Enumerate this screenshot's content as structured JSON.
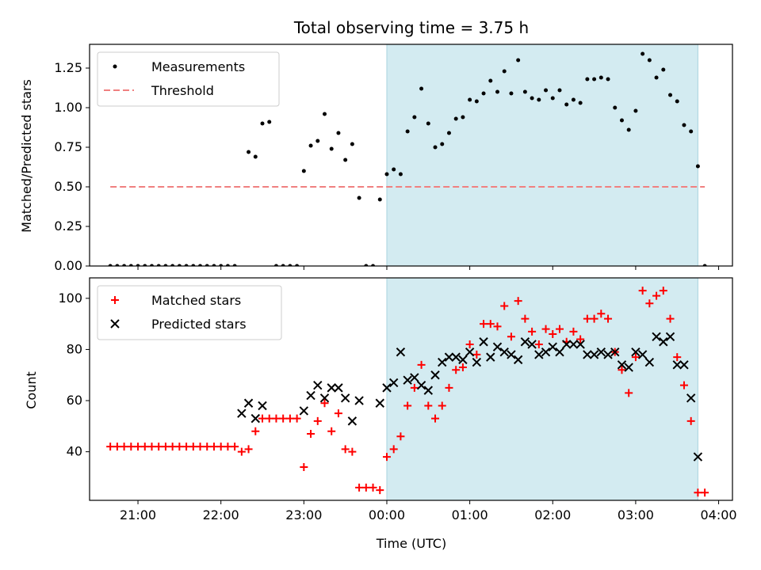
{
  "chart_data": [
    {
      "type": "scatter",
      "title": "Total observing time = 3.75 h",
      "ylabel": "Matched/Predicted stars",
      "xlim": [
        "20:25",
        "04:10"
      ],
      "ylim": [
        0,
        1.4
      ],
      "yticks": [
        0.0,
        0.25,
        0.5,
        0.75,
        1.0,
        1.25
      ],
      "ytick_labels": [
        "0.00",
        "0.25",
        "0.50",
        "0.75",
        "1.00",
        "1.25"
      ],
      "observing_window": [
        "00:00",
        "03:45"
      ],
      "window_color": "#d3ebf1",
      "legend": {
        "placement": "upper-left",
        "entries": [
          "Measurements",
          "Threshold"
        ]
      },
      "series": [
        {
          "name": "Measurements",
          "color": "#000000",
          "points": [
            [
              "20:40",
              0
            ],
            [
              "20:45",
              0
            ],
            [
              "20:50",
              0
            ],
            [
              "20:55",
              0
            ],
            [
              "21:00",
              0
            ],
            [
              "21:05",
              0
            ],
            [
              "21:10",
              0
            ],
            [
              "21:15",
              0
            ],
            [
              "21:20",
              0
            ],
            [
              "21:25",
              0
            ],
            [
              "21:30",
              0
            ],
            [
              "21:35",
              0
            ],
            [
              "21:40",
              0
            ],
            [
              "21:45",
              0
            ],
            [
              "21:50",
              0
            ],
            [
              "21:55",
              0
            ],
            [
              "22:00",
              0
            ],
            [
              "22:05",
              0
            ],
            [
              "22:10",
              0
            ],
            [
              "22:20",
              0.72
            ],
            [
              "22:25",
              0.69
            ],
            [
              "22:30",
              0.9
            ],
            [
              "22:35",
              0.91
            ],
            [
              "22:40",
              0
            ],
            [
              "22:45",
              0
            ],
            [
              "22:50",
              0
            ],
            [
              "22:55",
              0
            ],
            [
              "23:00",
              0.6
            ],
            [
              "23:05",
              0.76
            ],
            [
              "23:10",
              0.79
            ],
            [
              "23:15",
              0.96
            ],
            [
              "23:20",
              0.74
            ],
            [
              "23:25",
              0.84
            ],
            [
              "23:30",
              0.67
            ],
            [
              "23:35",
              0.77
            ],
            [
              "23:40",
              0.43
            ],
            [
              "23:45",
              0
            ],
            [
              "23:50",
              0
            ],
            [
              "23:55",
              0.42
            ],
            [
              "00:00",
              0.58
            ],
            [
              "00:05",
              0.61
            ],
            [
              "00:10",
              0.58
            ],
            [
              "00:15",
              0.85
            ],
            [
              "00:20",
              0.94
            ],
            [
              "00:25",
              1.12
            ],
            [
              "00:30",
              0.9
            ],
            [
              "00:35",
              0.75
            ],
            [
              "00:40",
              0.77
            ],
            [
              "00:45",
              0.84
            ],
            [
              "00:50",
              0.93
            ],
            [
              "00:55",
              0.94
            ],
            [
              "01:00",
              1.05
            ],
            [
              "01:05",
              1.04
            ],
            [
              "01:10",
              1.09
            ],
            [
              "01:15",
              1.17
            ],
            [
              "01:20",
              1.1
            ],
            [
              "01:25",
              1.23
            ],
            [
              "01:30",
              1.09
            ],
            [
              "01:35",
              1.3
            ],
            [
              "01:40",
              1.1
            ],
            [
              "01:45",
              1.06
            ],
            [
              "01:50",
              1.05
            ],
            [
              "01:55",
              1.11
            ],
            [
              "02:00",
              1.06
            ],
            [
              "02:05",
              1.11
            ],
            [
              "02:10",
              1.02
            ],
            [
              "02:15",
              1.05
            ],
            [
              "02:20",
              1.03
            ],
            [
              "02:25",
              1.18
            ],
            [
              "02:30",
              1.18
            ],
            [
              "02:35",
              1.19
            ],
            [
              "02:40",
              1.18
            ],
            [
              "02:45",
              1.0
            ],
            [
              "02:50",
              0.92
            ],
            [
              "02:55",
              0.86
            ],
            [
              "03:00",
              0.98
            ],
            [
              "03:05",
              1.34
            ],
            [
              "03:10",
              1.3
            ],
            [
              "03:15",
              1.19
            ],
            [
              "03:20",
              1.24
            ],
            [
              "03:25",
              1.08
            ],
            [
              "03:30",
              1.04
            ],
            [
              "03:35",
              0.89
            ],
            [
              "03:40",
              0.85
            ],
            [
              "03:45",
              0.63
            ],
            [
              "03:50",
              0
            ]
          ]
        },
        {
          "name": "Threshold",
          "color": "#f08080",
          "style": "dashed",
          "x": [
            "20:40",
            "03:50"
          ],
          "y": [
            0.5,
            0.5
          ]
        }
      ]
    },
    {
      "type": "scatter",
      "xlabel": "Time (UTC)",
      "ylabel": "Count",
      "xlim": [
        "20:25",
        "04:10"
      ],
      "ylim": [
        21,
        108
      ],
      "yticks": [
        40,
        60,
        80,
        100
      ],
      "ytick_labels": [
        "40",
        "60",
        "80",
        "100"
      ],
      "xticks": [
        "21:00",
        "22:00",
        "23:00",
        "00:00",
        "01:00",
        "02:00",
        "03:00",
        "04:00"
      ],
      "xtick_labels": [
        "21:00",
        "22:00",
        "23:00",
        "00:00",
        "01:00",
        "02:00",
        "03:00",
        "04:00"
      ],
      "observing_window": [
        "00:00",
        "03:45"
      ],
      "window_color": "#d3ebf1",
      "legend": {
        "placement": "upper-left",
        "entries": [
          "Matched stars",
          "Predicted stars"
        ]
      },
      "series": [
        {
          "name": "Matched stars",
          "color": "#ff0000",
          "marker": "plus",
          "points": [
            [
              "20:40",
              42
            ],
            [
              "20:45",
              42
            ],
            [
              "20:50",
              42
            ],
            [
              "20:55",
              42
            ],
            [
              "21:00",
              42
            ],
            [
              "21:05",
              42
            ],
            [
              "21:10",
              42
            ],
            [
              "21:15",
              42
            ],
            [
              "21:20",
              42
            ],
            [
              "21:25",
              42
            ],
            [
              "21:30",
              42
            ],
            [
              "21:35",
              42
            ],
            [
              "21:40",
              42
            ],
            [
              "21:45",
              42
            ],
            [
              "21:50",
              42
            ],
            [
              "21:55",
              42
            ],
            [
              "22:00",
              42
            ],
            [
              "22:05",
              42
            ],
            [
              "22:10",
              42
            ],
            [
              "22:15",
              40
            ],
            [
              "22:20",
              41
            ],
            [
              "22:25",
              48
            ],
            [
              "22:30",
              53
            ],
            [
              "22:35",
              53
            ],
            [
              "22:40",
              53
            ],
            [
              "22:45",
              53
            ],
            [
              "22:50",
              53
            ],
            [
              "22:55",
              53
            ],
            [
              "23:00",
              34
            ],
            [
              "23:05",
              47
            ],
            [
              "23:10",
              52
            ],
            [
              "23:15",
              59
            ],
            [
              "23:20",
              48
            ],
            [
              "23:25",
              55
            ],
            [
              "23:30",
              41
            ],
            [
              "23:35",
              40
            ],
            [
              "23:40",
              26
            ],
            [
              "23:45",
              26
            ],
            [
              "23:50",
              26
            ],
            [
              "23:55",
              25
            ],
            [
              "00:00",
              38
            ],
            [
              "00:05",
              41
            ],
            [
              "00:10",
              46
            ],
            [
              "00:15",
              58
            ],
            [
              "00:20",
              65
            ],
            [
              "00:25",
              74
            ],
            [
              "00:30",
              58
            ],
            [
              "00:35",
              53
            ],
            [
              "00:40",
              58
            ],
            [
              "00:45",
              65
            ],
            [
              "00:50",
              72
            ],
            [
              "00:55",
              73
            ],
            [
              "01:00",
              82
            ],
            [
              "01:05",
              78
            ],
            [
              "01:10",
              90
            ],
            [
              "01:15",
              90
            ],
            [
              "01:20",
              89
            ],
            [
              "01:25",
              97
            ],
            [
              "01:30",
              85
            ],
            [
              "01:35",
              99
            ],
            [
              "01:40",
              92
            ],
            [
              "01:45",
              87
            ],
            [
              "01:50",
              82
            ],
            [
              "01:55",
              88
            ],
            [
              "02:00",
              86
            ],
            [
              "02:05",
              88
            ],
            [
              "02:10",
              83
            ],
            [
              "02:15",
              87
            ],
            [
              "02:20",
              84
            ],
            [
              "02:25",
              92
            ],
            [
              "02:30",
              92
            ],
            [
              "02:35",
              94
            ],
            [
              "02:40",
              92
            ],
            [
              "02:45",
              79
            ],
            [
              "02:50",
              72
            ],
            [
              "02:55",
              63
            ],
            [
              "03:00",
              77
            ],
            [
              "03:05",
              103
            ],
            [
              "03:10",
              98
            ],
            [
              "03:15",
              101
            ],
            [
              "03:20",
              103
            ],
            [
              "03:25",
              92
            ],
            [
              "03:30",
              77
            ],
            [
              "03:35",
              66
            ],
            [
              "03:40",
              52
            ],
            [
              "03:45",
              24
            ],
            [
              "03:50",
              24
            ]
          ]
        },
        {
          "name": "Predicted stars",
          "color": "#000000",
          "marker": "x",
          "points": [
            [
              "22:15",
              55
            ],
            [
              "22:20",
              59
            ],
            [
              "22:25",
              53
            ],
            [
              "22:30",
              58
            ],
            [
              "23:00",
              56
            ],
            [
              "23:05",
              62
            ],
            [
              "23:10",
              66
            ],
            [
              "23:15",
              61
            ],
            [
              "23:20",
              65
            ],
            [
              "23:25",
              65
            ],
            [
              "23:30",
              61
            ],
            [
              "23:35",
              52
            ],
            [
              "23:40",
              60
            ],
            [
              "23:55",
              59
            ],
            [
              "00:00",
              65
            ],
            [
              "00:05",
              67
            ],
            [
              "00:10",
              79
            ],
            [
              "00:15",
              68
            ],
            [
              "00:20",
              69
            ],
            [
              "00:25",
              66
            ],
            [
              "00:30",
              64
            ],
            [
              "00:35",
              70
            ],
            [
              "00:40",
              75
            ],
            [
              "00:45",
              77
            ],
            [
              "00:50",
              77
            ],
            [
              "00:55",
              76
            ],
            [
              "01:00",
              79
            ],
            [
              "01:05",
              75
            ],
            [
              "01:10",
              83
            ],
            [
              "01:15",
              77
            ],
            [
              "01:20",
              81
            ],
            [
              "01:25",
              79
            ],
            [
              "01:30",
              78
            ],
            [
              "01:35",
              76
            ],
            [
              "01:40",
              83
            ],
            [
              "01:45",
              82
            ],
            [
              "01:50",
              78
            ],
            [
              "01:55",
              79
            ],
            [
              "02:00",
              81
            ],
            [
              "02:05",
              79
            ],
            [
              "02:10",
              82
            ],
            [
              "02:15",
              82
            ],
            [
              "02:20",
              82
            ],
            [
              "02:25",
              78
            ],
            [
              "02:30",
              78
            ],
            [
              "02:35",
              79
            ],
            [
              "02:40",
              78
            ],
            [
              "02:45",
              79
            ],
            [
              "02:50",
              74
            ],
            [
              "02:55",
              73
            ],
            [
              "03:00",
              79
            ],
            [
              "03:05",
              78
            ],
            [
              "03:10",
              75
            ],
            [
              "03:15",
              85
            ],
            [
              "03:20",
              83
            ],
            [
              "03:25",
              85
            ],
            [
              "03:30",
              74
            ],
            [
              "03:35",
              74
            ],
            [
              "03:40",
              61
            ],
            [
              "03:45",
              38
            ]
          ]
        }
      ]
    }
  ]
}
